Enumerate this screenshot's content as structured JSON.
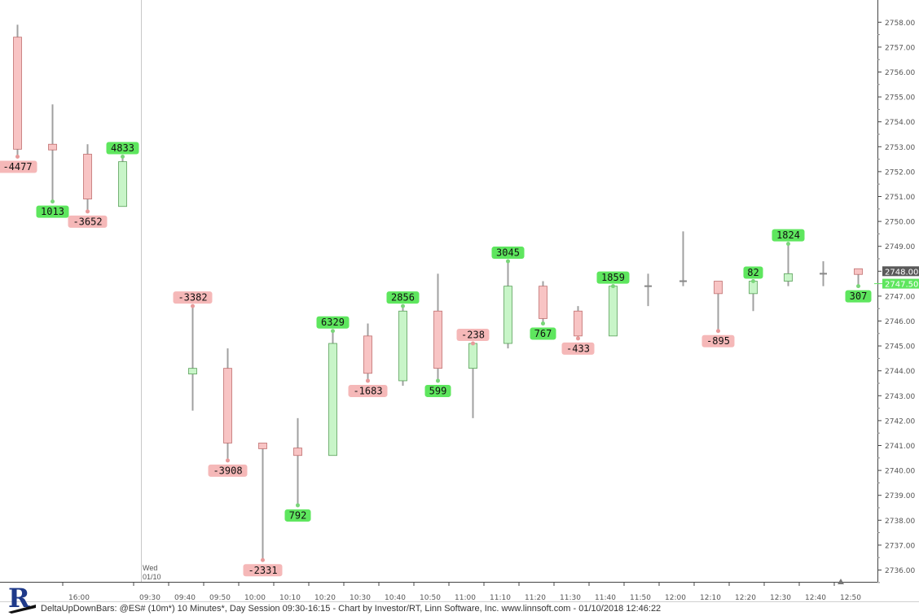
{
  "footer": {
    "caption": "DeltaUpDownBars: @ES# (10m*) 10 Minutes*, Day Session 09:30-16:15 - Chart by Investor/RT, Linn Software, Inc. www.linnsoft.com - 01/10/2018 12:46:22"
  },
  "session_marker": {
    "day": "Wed",
    "date": "01/10"
  },
  "colors": {
    "up_fill": "#c8f5c8",
    "up_stroke": "#5aa05a",
    "down_fill": "#f8c4c4",
    "down_stroke": "#c07070",
    "up_label": "#5ee65e",
    "down_label": "#f5b8b8",
    "wick": "#a0a0a0",
    "last_price_bg": "#5a5a5a",
    "current_price_bg": "#5ee65e"
  },
  "icons": {
    "logo": "investor-rt-logo-icon",
    "scroll_marker": "up-arrow-icon"
  },
  "chart_data": {
    "type": "candlestick",
    "title": "",
    "xlabel": "",
    "ylabel": "",
    "ylim": [
      2735.5,
      2758.3
    ],
    "y_ticks": [
      "2736.00",
      "2737.00",
      "2738.00",
      "2739.00",
      "2740.00",
      "2741.00",
      "2742.00",
      "2743.00",
      "2744.00",
      "2745.00",
      "2746.00",
      "2747.00",
      "2748.00",
      "2749.00",
      "2750.00",
      "2751.00",
      "2752.00",
      "2753.00",
      "2754.00",
      "2755.00",
      "2756.00",
      "2757.00",
      "2758.00"
    ],
    "x_ticks": [
      "16:00",
      "09:30",
      "09:40",
      "09:50",
      "10:00",
      "10:10",
      "10:20",
      "10:30",
      "10:40",
      "10:50",
      "11:00",
      "11:10",
      "11:20",
      "11:30",
      "11:40",
      "11:50",
      "12:00",
      "12:10",
      "12:20",
      "12:30",
      "12:40",
      "12:50"
    ],
    "last_price_label": "2748.00",
    "current_price_label": "2747.50",
    "bars": [
      {
        "idx": 0,
        "open": 2757.4,
        "high": 2757.9,
        "low": 2752.6,
        "close": 2752.9,
        "delta": "-4477",
        "dir": "down"
      },
      {
        "idx": 1,
        "open": 2753.1,
        "high": 2754.7,
        "low": 2750.8,
        "close": 2752.9,
        "delta": "1013",
        "dir": "down"
      },
      {
        "idx": 2,
        "open": 2752.7,
        "high": 2753.1,
        "low": 2750.4,
        "close": 2750.9,
        "delta": "-3652",
        "dir": "down"
      },
      {
        "idx": 3,
        "open": 2750.6,
        "high": 2752.6,
        "low": 2750.6,
        "close": 2752.4,
        "delta": "4833",
        "dir": "up"
      },
      {
        "idx": 5,
        "open": 2744.0,
        "high": 2746.6,
        "low": 2742.4,
        "close": 2744.1,
        "delta": "-3382",
        "dir": "up"
      },
      {
        "idx": 6,
        "open": 2744.1,
        "high": 2744.9,
        "low": 2740.4,
        "close": 2741.1,
        "delta": "-3908",
        "dir": "down"
      },
      {
        "idx": 7,
        "open": 2741.1,
        "high": 2741.1,
        "low": 2736.4,
        "close": 2740.9,
        "delta": "-2331",
        "dir": "down"
      },
      {
        "idx": 8,
        "open": 2740.6,
        "high": 2742.1,
        "low": 2738.6,
        "close": 2740.9,
        "delta": "792",
        "dir": "down"
      },
      {
        "idx": 9,
        "open": 2740.6,
        "high": 2745.6,
        "low": 2740.6,
        "close": 2745.1,
        "delta": "6329",
        "dir": "up"
      },
      {
        "idx": 10,
        "open": 2745.4,
        "high": 2745.9,
        "low": 2743.6,
        "close": 2743.9,
        "delta": "-1683",
        "dir": "down"
      },
      {
        "idx": 11,
        "open": 2743.6,
        "high": 2746.6,
        "low": 2743.4,
        "close": 2746.4,
        "delta": "2856",
        "dir": "up"
      },
      {
        "idx": 12,
        "open": 2746.4,
        "high": 2747.9,
        "low": 2743.6,
        "close": 2744.1,
        "delta": "599",
        "dir": "down"
      },
      {
        "idx": 13,
        "open": 2744.1,
        "high": 2745.1,
        "low": 2742.1,
        "close": 2745.1,
        "delta": "-238",
        "dir": "up"
      },
      {
        "idx": 14,
        "open": 2745.1,
        "high": 2748.4,
        "low": 2744.9,
        "close": 2747.4,
        "delta": "3045",
        "dir": "up"
      },
      {
        "idx": 15,
        "open": 2747.4,
        "high": 2747.6,
        "low": 2745.9,
        "close": 2746.1,
        "delta": "767",
        "dir": "down"
      },
      {
        "idx": 16,
        "open": 2746.4,
        "high": 2746.6,
        "low": 2745.3,
        "close": 2745.4,
        "delta": "-433",
        "dir": "down"
      },
      {
        "idx": 17,
        "open": 2745.4,
        "high": 2747.4,
        "low": 2745.4,
        "close": 2747.4,
        "delta": "1859",
        "dir": "up"
      },
      {
        "idx": 18,
        "open": 2747.4,
        "high": 2747.9,
        "low": 2746.6,
        "close": 2747.4,
        "delta": "",
        "dir": "flat"
      },
      {
        "idx": 19,
        "open": 2747.6,
        "high": 2749.6,
        "low": 2747.4,
        "close": 2747.6,
        "delta": "",
        "dir": "flat"
      },
      {
        "idx": 20,
        "open": 2747.6,
        "high": 2747.6,
        "low": 2745.6,
        "close": 2747.1,
        "delta": "-895",
        "dir": "down"
      },
      {
        "idx": 21,
        "open": 2747.1,
        "high": 2747.6,
        "low": 2746.4,
        "close": 2747.6,
        "delta": "82",
        "dir": "up"
      },
      {
        "idx": 22,
        "open": 2747.6,
        "high": 2749.1,
        "low": 2747.4,
        "close": 2747.9,
        "delta": "1824",
        "dir": "up"
      },
      {
        "idx": 23,
        "open": 2747.9,
        "high": 2748.4,
        "low": 2747.4,
        "close": 2747.9,
        "delta": "",
        "dir": "flat"
      },
      {
        "idx": 24,
        "open": 2748.1,
        "high": 2748.1,
        "low": 2747.4,
        "close": 2747.9,
        "delta": "307",
        "dir": "down"
      }
    ]
  }
}
